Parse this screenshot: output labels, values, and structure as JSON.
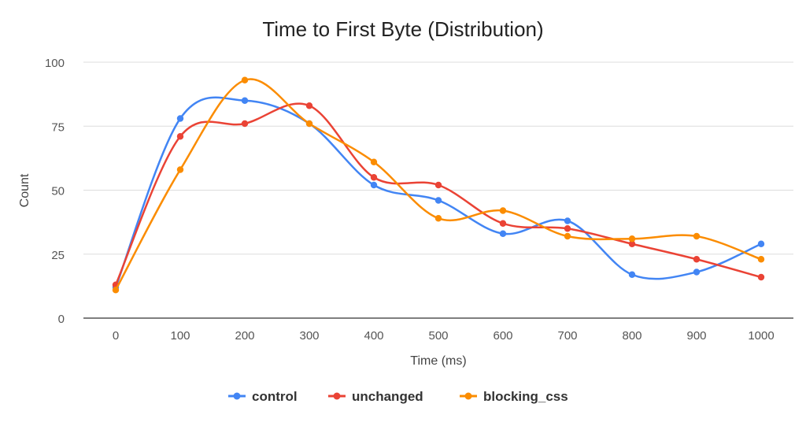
{
  "chart_data": {
    "type": "line",
    "title": "Time to First Byte (Distribution)",
    "xlabel": "Time (ms)",
    "ylabel": "Count",
    "x": [
      0,
      100,
      200,
      300,
      400,
      500,
      600,
      700,
      800,
      900,
      1000
    ],
    "x_tick_labels": [
      "0",
      "100",
      "200",
      "300",
      "400",
      "500",
      "600",
      "700",
      "800",
      "900",
      "1000"
    ],
    "ylim": [
      0,
      100
    ],
    "y_ticks": [
      0,
      25,
      50,
      75,
      100
    ],
    "y_tick_labels": [
      "0",
      "25",
      "50",
      "75",
      "100"
    ],
    "grid": true,
    "smooth": true,
    "legend": "bottom",
    "series": [
      {
        "name": "control",
        "color": "#4285f4",
        "values": [
          12,
          78,
          85,
          76,
          52,
          46,
          33,
          38,
          17,
          18,
          29
        ]
      },
      {
        "name": "unchanged",
        "color": "#ea4335",
        "values": [
          13,
          71,
          76,
          83,
          55,
          52,
          37,
          35,
          29,
          23,
          16
        ]
      },
      {
        "name": "blocking_css",
        "color": "#fb8c00",
        "values": [
          11,
          58,
          93,
          76,
          61,
          39,
          42,
          32,
          31,
          32,
          23
        ]
      }
    ]
  }
}
